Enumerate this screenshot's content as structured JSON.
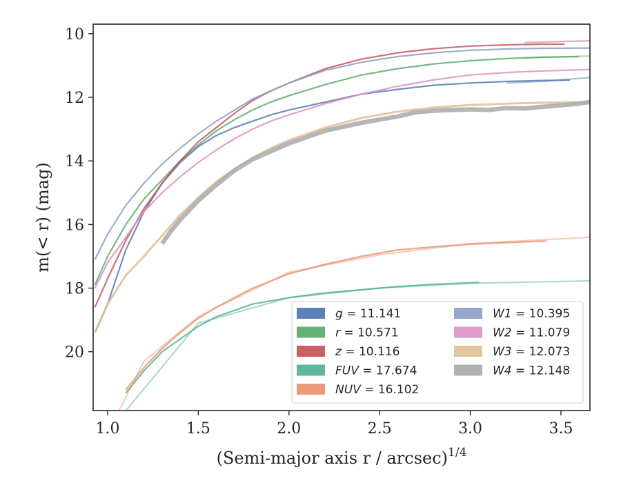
{
  "chart_data": {
    "type": "line",
    "xlabel": "(Semi-major axis r / arcsec)",
    "xlabel_exponent": "1/4",
    "ylabel": "m(< r) (mag)",
    "xlim": [
      0.92,
      3.66
    ],
    "ylim": [
      21.85,
      9.7
    ],
    "y_inverted": true,
    "grid": false,
    "legend_position": "lower-right",
    "x_ticks": [
      1.0,
      1.5,
      2.0,
      2.5,
      3.0,
      3.5
    ],
    "x_tick_labels": [
      "1.0",
      "1.5",
      "2.0",
      "2.5",
      "3.0",
      "3.5"
    ],
    "y_ticks": [
      10,
      12,
      14,
      16,
      18,
      20
    ],
    "y_tick_labels": [
      "10",
      "12",
      "14",
      "16",
      "18",
      "20"
    ],
    "series": [
      {
        "name": "g",
        "legend_value": "11.141",
        "color": "#4c72b0",
        "x": [
          0.93,
          1.0,
          1.1,
          1.2,
          1.3,
          1.4,
          1.5,
          1.6,
          1.7,
          1.8,
          1.9,
          2.0,
          2.2,
          2.4,
          2.6,
          2.8,
          3.0,
          3.2,
          3.4,
          3.55
        ],
        "y": [
          19.4,
          18.5,
          16.8,
          15.6,
          14.7,
          14.05,
          13.55,
          13.2,
          12.95,
          12.75,
          12.55,
          12.4,
          12.15,
          11.9,
          11.75,
          11.62,
          11.55,
          11.5,
          11.47,
          11.46
        ],
        "faded_x": [
          3.2,
          3.4,
          3.66
        ],
        "faded_y": [
          11.55,
          11.5,
          11.38
        ]
      },
      {
        "name": "r",
        "legend_value": "10.571",
        "color": "#55a868",
        "x": [
          0.93,
          1.0,
          1.1,
          1.2,
          1.3,
          1.4,
          1.5,
          1.6,
          1.7,
          1.8,
          1.9,
          2.0,
          2.2,
          2.4,
          2.6,
          2.8,
          3.0,
          3.2,
          3.4,
          3.6
        ],
        "y": [
          17.9,
          17.0,
          16.0,
          15.2,
          14.6,
          14.0,
          13.5,
          13.05,
          12.7,
          12.4,
          12.15,
          11.95,
          11.6,
          11.3,
          11.1,
          10.95,
          10.85,
          10.78,
          10.74,
          10.72
        ],
        "faded_x": [
          3.3,
          3.66
        ],
        "faded_y": [
          10.76,
          10.7
        ]
      },
      {
        "name": "z",
        "legend_value": "10.116",
        "color": "#c44e52",
        "x": [
          0.93,
          1.0,
          1.1,
          1.2,
          1.3,
          1.4,
          1.5,
          1.6,
          1.7,
          1.8,
          1.9,
          2.0,
          2.2,
          2.4,
          2.6,
          2.8,
          3.0,
          3.2,
          3.4,
          3.52
        ],
        "y": [
          18.6,
          17.7,
          16.5,
          15.5,
          14.7,
          14.0,
          13.4,
          12.95,
          12.5,
          12.1,
          11.8,
          11.55,
          11.1,
          10.8,
          10.6,
          10.47,
          10.39,
          10.35,
          10.33,
          10.33
        ],
        "faded_x": [
          3.3,
          3.66
        ],
        "faded_y": [
          10.28,
          10.22
        ]
      },
      {
        "name": "FUV",
        "legend_value": "17.674",
        "color": "#4daf91",
        "x": [
          1.1,
          1.2,
          1.3,
          1.4,
          1.5,
          1.6,
          1.8,
          2.0,
          2.2,
          2.4,
          2.6,
          2.8,
          3.05
        ],
        "y": [
          21.3,
          20.6,
          20.0,
          19.6,
          19.2,
          18.9,
          18.5,
          18.3,
          18.15,
          18.05,
          17.95,
          17.88,
          17.82
        ],
        "faded_x": [
          1.08,
          1.5,
          2.0,
          2.5,
          3.0,
          3.66
        ],
        "faded_y": [
          22.0,
          19.1,
          18.3,
          18.0,
          17.85,
          17.77
        ]
      },
      {
        "name": "NUV",
        "legend_value": "16.102",
        "color": "#e8906a",
        "x": [
          1.1,
          1.2,
          1.3,
          1.4,
          1.5,
          1.6,
          1.8,
          2.0,
          2.2,
          2.4,
          2.6,
          2.8,
          3.0,
          3.2,
          3.42
        ],
        "y": [
          21.2,
          20.5,
          19.9,
          19.4,
          18.95,
          18.6,
          18.0,
          17.55,
          17.25,
          17.0,
          16.8,
          16.7,
          16.62,
          16.57,
          16.52
        ],
        "faded_x": [
          1.05,
          1.2,
          1.5,
          2.0,
          2.5,
          3.0,
          3.66
        ],
        "faded_y": [
          22.0,
          20.3,
          18.9,
          17.5,
          16.95,
          16.6,
          16.4
        ]
      },
      {
        "name": "W1",
        "legend_value": "10.395",
        "color": "#8c9dc5",
        "x": [
          0.93,
          1.0,
          1.1,
          1.2,
          1.3,
          1.4,
          1.5,
          1.6,
          1.7,
          1.8,
          1.9,
          2.0,
          2.2,
          2.4,
          2.6,
          2.8,
          3.0,
          3.2,
          3.4,
          3.66
        ],
        "y": [
          17.1,
          16.3,
          15.4,
          14.7,
          14.1,
          13.6,
          13.15,
          12.75,
          12.4,
          12.05,
          11.8,
          11.55,
          11.15,
          10.9,
          10.72,
          10.6,
          10.52,
          10.48,
          10.46,
          10.45
        ]
      },
      {
        "name": "W2",
        "legend_value": "11.079",
        "color": "#dd8fc6",
        "x": [
          0.93,
          1.0,
          1.1,
          1.2,
          1.3,
          1.4,
          1.5,
          1.6,
          1.7,
          1.8,
          1.9,
          2.0,
          2.2,
          2.4,
          2.6,
          2.8,
          3.0,
          3.2,
          3.4,
          3.66
        ],
        "y": [
          18.0,
          17.2,
          16.4,
          15.6,
          15.0,
          14.5,
          14.05,
          13.65,
          13.3,
          13.0,
          12.75,
          12.55,
          12.2,
          11.9,
          11.65,
          11.45,
          11.3,
          11.22,
          11.17,
          11.13
        ]
      },
      {
        "name": "W3",
        "legend_value": "12.073",
        "color": "#dfc093",
        "x": [
          0.93,
          1.0,
          1.1,
          1.2,
          1.3,
          1.4,
          1.5,
          1.6,
          1.7,
          1.8,
          1.9,
          2.0,
          2.2,
          2.4,
          2.6,
          2.8,
          3.0,
          3.2,
          3.4,
          3.66
        ],
        "y": [
          19.4,
          18.5,
          17.6,
          17.0,
          16.35,
          15.7,
          15.15,
          14.65,
          14.25,
          13.9,
          13.6,
          13.35,
          12.95,
          12.65,
          12.45,
          12.32,
          12.24,
          12.2,
          12.17,
          12.15
        ]
      },
      {
        "name": "W4",
        "legend_value": "12.148",
        "color": "#a9a9a9",
        "x": [
          1.3,
          1.35,
          1.4,
          1.5,
          1.6,
          1.7,
          1.8,
          1.9,
          2.0,
          2.2,
          2.4,
          2.6,
          2.7,
          2.8,
          2.9,
          3.0,
          3.1,
          3.2,
          3.3,
          3.4,
          3.5,
          3.6,
          3.66
        ],
        "y": [
          16.6,
          16.2,
          15.85,
          15.25,
          14.75,
          14.3,
          13.95,
          13.7,
          13.45,
          13.05,
          12.8,
          12.6,
          12.47,
          12.42,
          12.4,
          12.38,
          12.4,
          12.34,
          12.35,
          12.3,
          12.25,
          12.2,
          12.15
        ]
      }
    ]
  }
}
